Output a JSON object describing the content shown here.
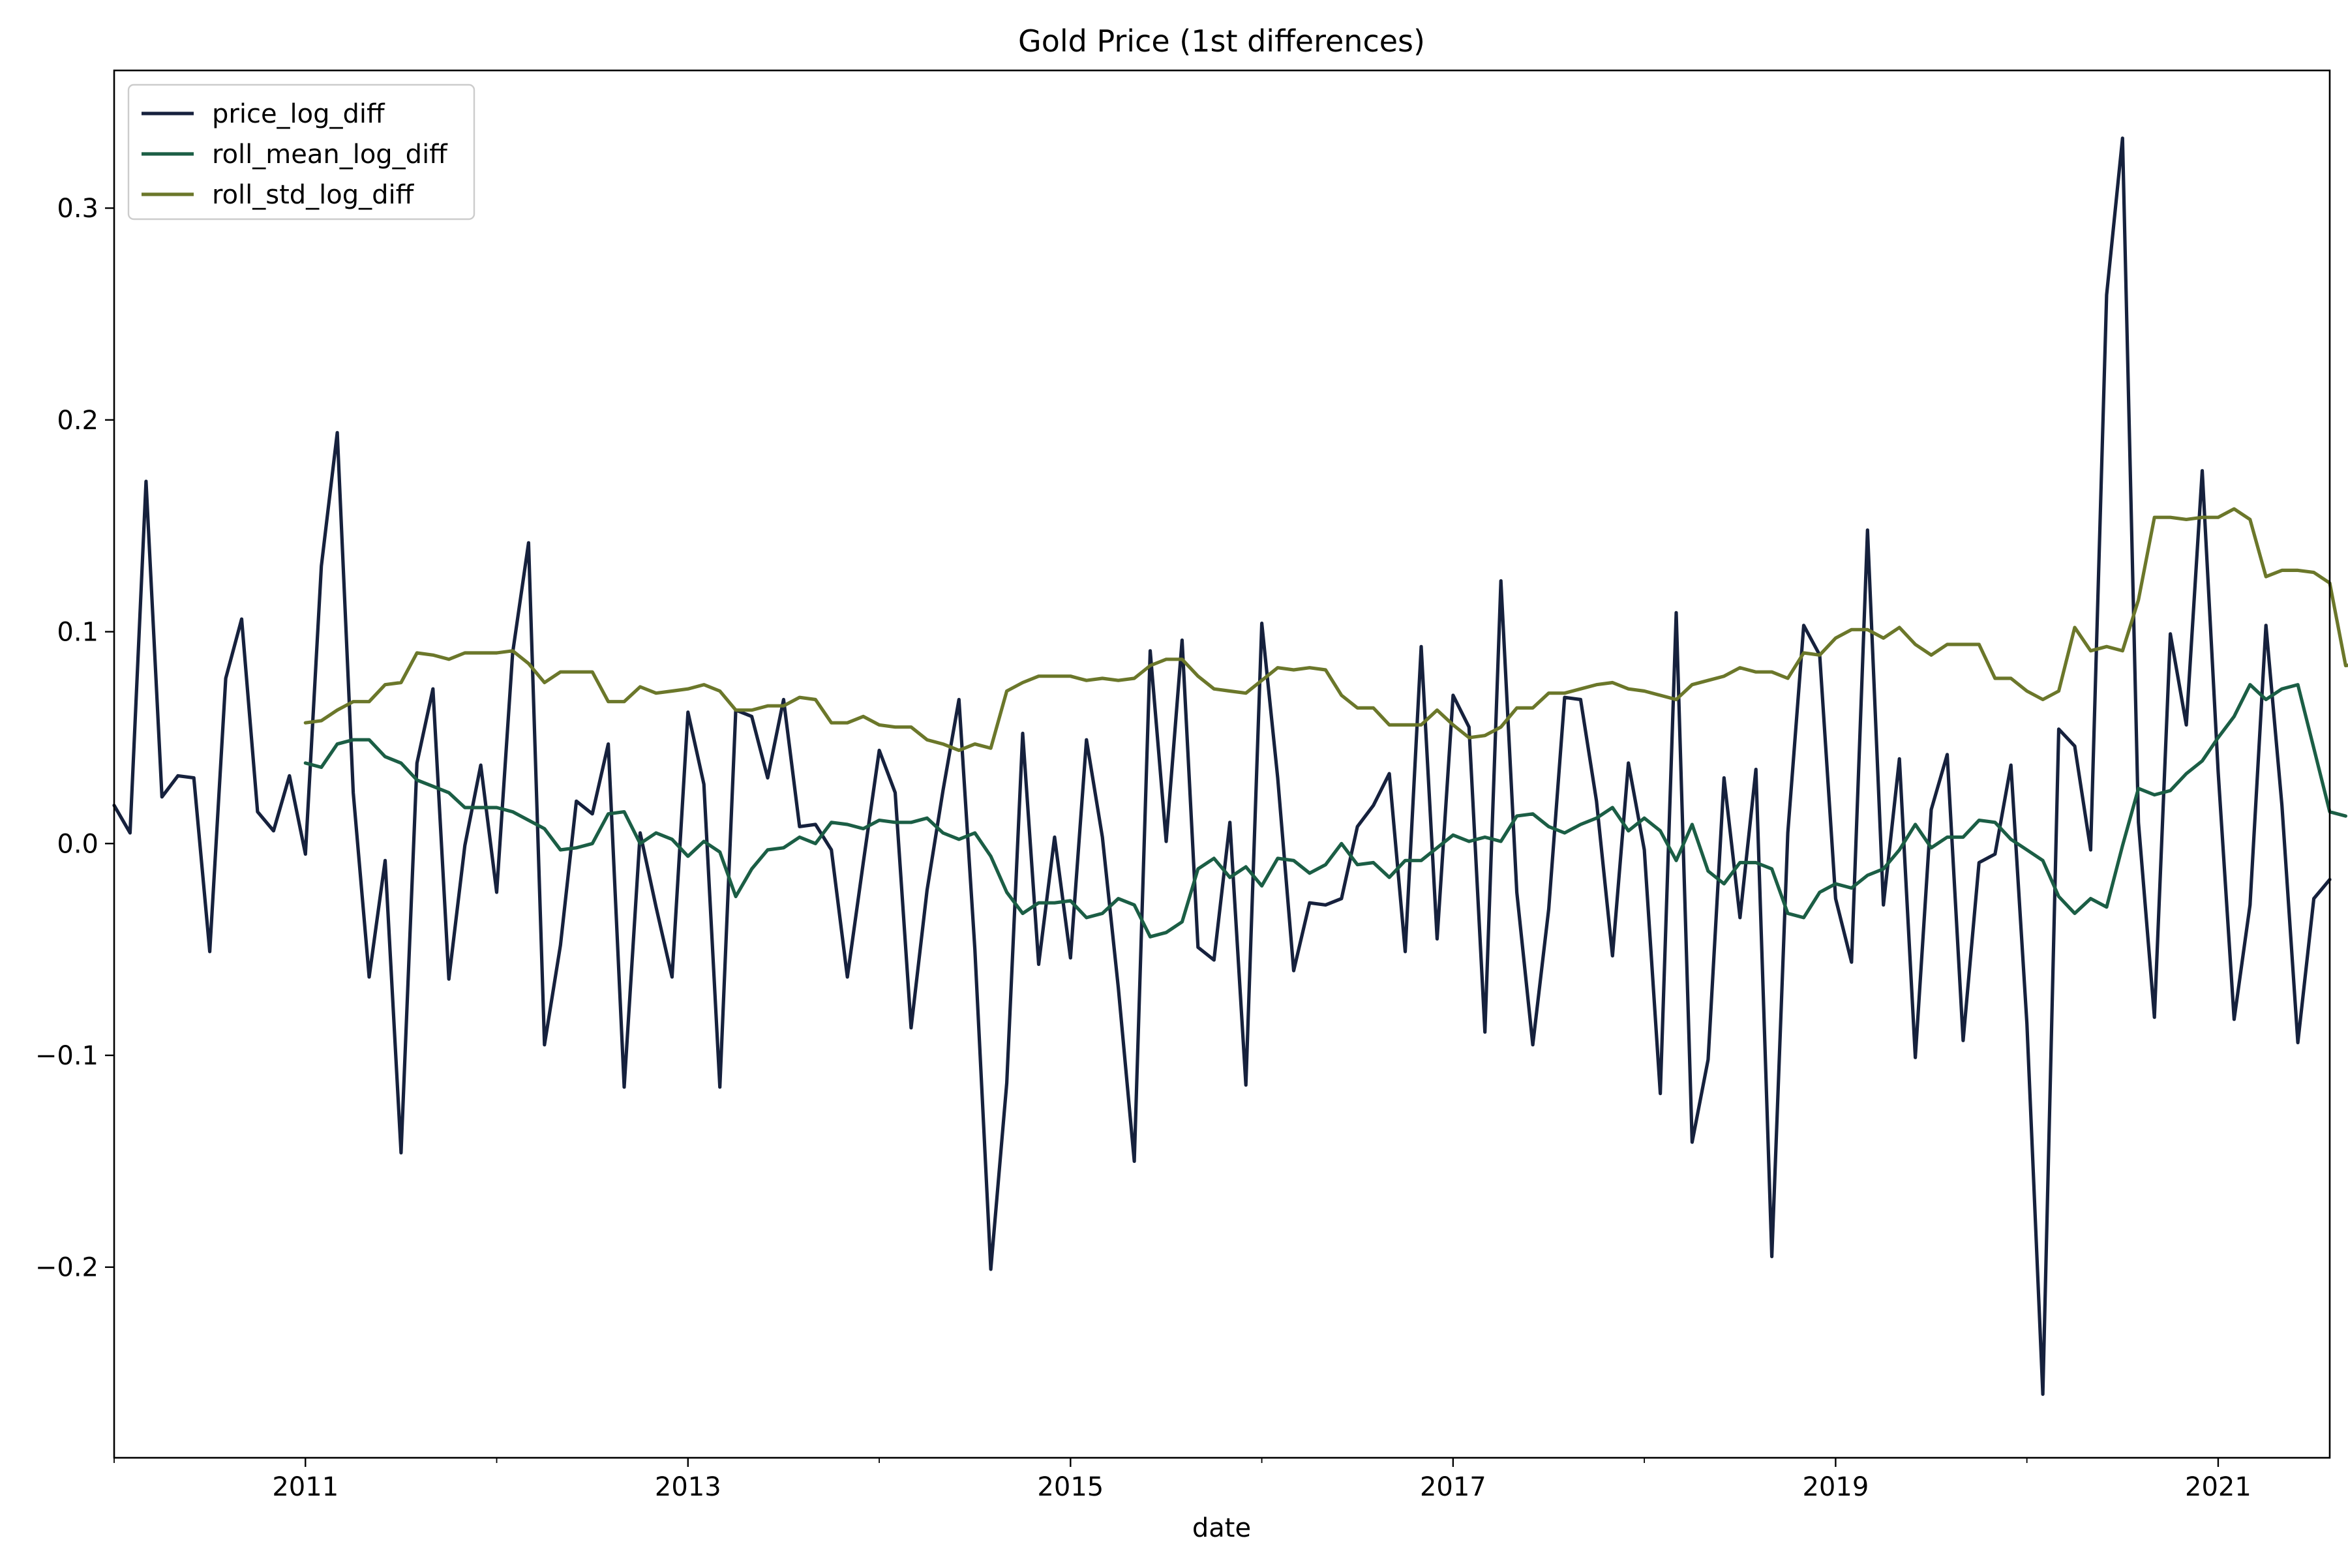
{
  "chart_data": {
    "type": "line",
    "title": "Gold Price (1st differences)",
    "xlabel": "date",
    "ylabel": "",
    "x_start": "2010-01",
    "x_end": "2021-08",
    "xlim": [
      "2010-01",
      "2021-08"
    ],
    "ylim": [
      -0.29,
      0.365
    ],
    "x_ticks": [
      {
        "date": "2011-01",
        "label": "2011"
      },
      {
        "date": "2013-01",
        "label": "2013"
      },
      {
        "date": "2015-01",
        "label": "2015"
      },
      {
        "date": "2017-01",
        "label": "2017"
      },
      {
        "date": "2019-01",
        "label": "2019"
      },
      {
        "date": "2021-01",
        "label": "2021"
      }
    ],
    "x_minor_ticks": [
      "2010-01",
      "2012-01",
      "2014-01",
      "2016-01",
      "2018-01",
      "2020-01"
    ],
    "y_ticks": [
      {
        "value": -0.2,
        "label": "−0.2"
      },
      {
        "value": -0.1,
        "label": "−0.1"
      },
      {
        "value": 0.0,
        "label": "0.0"
      },
      {
        "value": 0.1,
        "label": "0.1"
      },
      {
        "value": 0.2,
        "label": "0.2"
      },
      {
        "value": 0.3,
        "label": "0.3"
      }
    ],
    "grid": false,
    "legend_position": "upper left",
    "series": [
      {
        "name": "price_log_diff",
        "color": "#16213d",
        "start": "2010-01",
        "values": [
          0.018,
          0.005,
          0.171,
          0.022,
          0.032,
          0.031,
          -0.051,
          0.078,
          0.106,
          0.015,
          0.006,
          0.032,
          -0.005,
          0.131,
          0.194,
          0.024,
          -0.063,
          -0.008,
          -0.146,
          0.038,
          0.073,
          -0.064,
          -0.001,
          0.037,
          -0.023,
          0.09,
          0.142,
          -0.095,
          -0.048,
          0.02,
          0.014,
          0.047,
          -0.115,
          0.005,
          -0.03,
          -0.063,
          0.062,
          0.028,
          -0.115,
          0.063,
          0.06,
          0.031,
          0.068,
          0.008,
          0.009,
          -0.003,
          -0.063,
          -0.009,
          0.044,
          0.024,
          -0.087,
          -0.022,
          0.025,
          0.068,
          -0.05,
          -0.201,
          -0.113,
          0.052,
          -0.057,
          0.003,
          -0.054,
          0.049,
          0.003,
          -0.068,
          -0.15,
          0.091,
          0.001,
          0.096,
          -0.049,
          -0.055,
          0.01,
          -0.114,
          0.104,
          0.031,
          -0.06,
          -0.028,
          -0.029,
          -0.026,
          0.008,
          0.018,
          0.033,
          -0.051,
          0.093,
          -0.045,
          0.07,
          0.055,
          -0.089,
          0.124,
          -0.023,
          -0.095,
          -0.031,
          0.069,
          0.068,
          0.02,
          -0.053,
          0.038,
          -0.003,
          -0.118,
          0.109,
          -0.141,
          -0.102,
          0.031,
          -0.035,
          0.035,
          -0.195,
          0.005,
          0.103,
          0.089,
          -0.026,
          -0.056,
          0.148,
          -0.029,
          0.04,
          -0.101,
          0.016,
          0.042,
          -0.093,
          -0.009,
          -0.005,
          0.037,
          -0.085,
          -0.26,
          0.054,
          0.046,
          -0.003,
          0.259,
          0.333,
          0.01,
          -0.082,
          0.099,
          0.056,
          0.176,
          0.034,
          -0.083,
          -0.029,
          0.103,
          0.018,
          -0.094,
          -0.026,
          -0.017
        ]
      },
      {
        "name": "roll_mean_log_diff",
        "color": "#1b5e45",
        "start": "2011-01",
        "values": [
          0.038,
          0.036,
          0.047,
          0.049,
          0.049,
          0.041,
          0.038,
          0.03,
          0.027,
          0.024,
          0.017,
          0.017,
          0.017,
          0.015,
          0.011,
          0.007,
          -0.003,
          -0.002,
          0.0,
          0.014,
          0.015,
          0.0,
          0.005,
          0.002,
          -0.006,
          0.001,
          -0.004,
          -0.025,
          -0.012,
          -0.003,
          -0.002,
          0.003,
          0.0,
          0.01,
          0.009,
          0.007,
          0.011,
          0.01,
          0.01,
          0.012,
          0.005,
          0.002,
          0.005,
          -0.006,
          -0.023,
          -0.033,
          -0.028,
          -0.028,
          -0.027,
          -0.035,
          -0.033,
          -0.026,
          -0.029,
          -0.044,
          -0.042,
          -0.037,
          -0.012,
          -0.007,
          -0.016,
          -0.011,
          -0.02,
          -0.007,
          -0.008,
          -0.014,
          -0.01,
          0.0,
          -0.01,
          -0.009,
          -0.016,
          -0.008,
          -0.008,
          -0.002,
          0.004,
          0.001,
          0.003,
          0.001,
          0.013,
          0.014,
          0.008,
          0.005,
          0.009,
          0.012,
          0.017,
          0.006,
          0.012,
          0.006,
          -0.008,
          0.009,
          -0.013,
          -0.019,
          -0.009,
          -0.009,
          -0.012,
          -0.033,
          -0.035,
          -0.023,
          -0.019,
          -0.021,
          -0.015,
          -0.012,
          -0.003,
          0.009,
          -0.002,
          0.003,
          0.003,
          0.011,
          0.01,
          0.002,
          -0.003,
          -0.008,
          -0.025,
          -0.033,
          -0.026,
          -0.03,
          -0.001,
          0.026,
          0.023,
          0.025,
          0.033,
          0.039,
          0.05,
          0.06,
          0.075,
          0.068,
          0.073,
          0.075,
          0.045,
          0.015,
          0.013
        ]
      },
      {
        "name": "roll_std_log_diff",
        "color": "#6b772a",
        "start": "2011-01",
        "values": [
          0.057,
          0.058,
          0.063,
          0.067,
          0.067,
          0.075,
          0.076,
          0.09,
          0.089,
          0.087,
          0.09,
          0.09,
          0.09,
          0.091,
          0.085,
          0.076,
          0.081,
          0.081,
          0.081,
          0.067,
          0.067,
          0.074,
          0.071,
          0.072,
          0.073,
          0.075,
          0.072,
          0.063,
          0.063,
          0.065,
          0.065,
          0.069,
          0.068,
          0.057,
          0.057,
          0.06,
          0.056,
          0.055,
          0.055,
          0.049,
          0.047,
          0.044,
          0.047,
          0.045,
          0.072,
          0.076,
          0.079,
          0.079,
          0.079,
          0.077,
          0.078,
          0.077,
          0.078,
          0.084,
          0.087,
          0.087,
          0.079,
          0.073,
          0.072,
          0.071,
          0.077,
          0.083,
          0.082,
          0.083,
          0.082,
          0.07,
          0.064,
          0.064,
          0.056,
          0.056,
          0.056,
          0.063,
          0.056,
          0.05,
          0.051,
          0.055,
          0.064,
          0.064,
          0.071,
          0.071,
          0.073,
          0.075,
          0.076,
          0.073,
          0.072,
          0.07,
          0.068,
          0.075,
          0.077,
          0.079,
          0.083,
          0.081,
          0.081,
          0.078,
          0.09,
          0.089,
          0.097,
          0.101,
          0.101,
          0.097,
          0.102,
          0.094,
          0.089,
          0.094,
          0.094,
          0.094,
          0.078,
          0.078,
          0.072,
          0.068,
          0.072,
          0.102,
          0.091,
          0.093,
          0.091,
          0.115,
          0.154,
          0.154,
          0.153,
          0.154,
          0.154,
          0.158,
          0.153,
          0.126,
          0.129,
          0.129,
          0.128,
          0.123,
          0.084,
          0.085
        ]
      }
    ]
  }
}
